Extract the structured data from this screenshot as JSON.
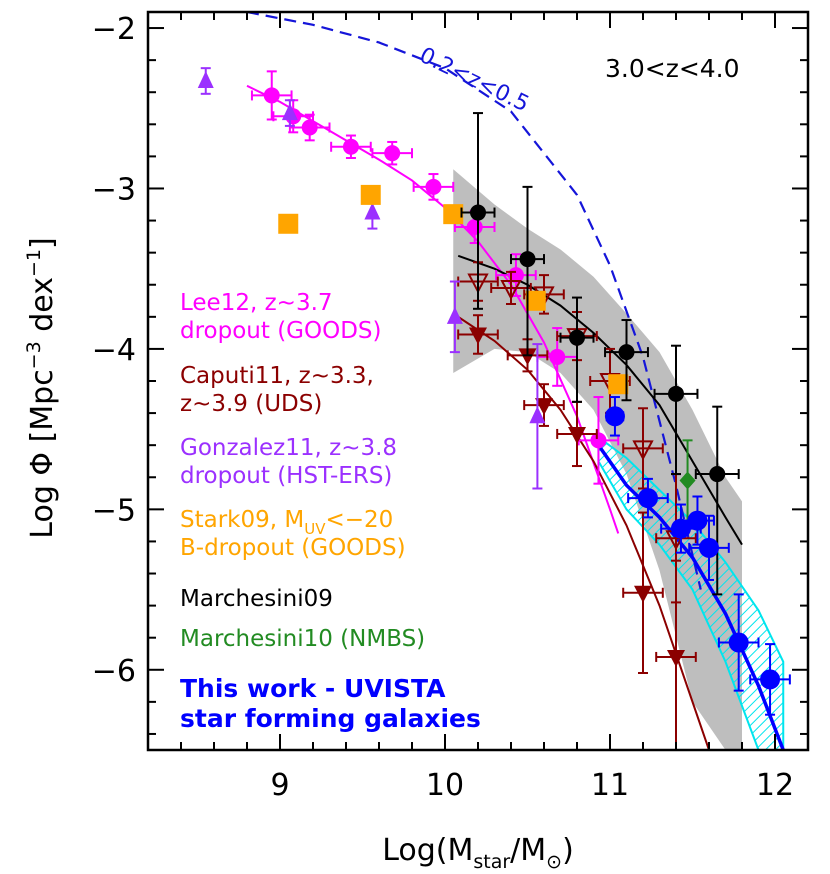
{
  "chart_data": {
    "type": "scatter",
    "xlabel_main": "Log(M",
    "xlabel_sub": "star",
    "xlabel_slash": "/M",
    "xlabel_sun": "⊙",
    "xlabel_close": ")",
    "ylabel_main": "Log Φ [Mpc",
    "ylabel_sup1": "−3",
    "ylabel_mid": " dex",
    "ylabel_sup2": "−1",
    "ylabel_close": "]",
    "xlim": [
      8.2,
      12.2
    ],
    "ylim": [
      -6.5,
      -1.9
    ],
    "xticks": [
      9,
      10,
      11,
      12
    ],
    "xtick_labels": [
      "9",
      "10",
      "11",
      "12"
    ],
    "yticks": [
      -2,
      -3,
      -4,
      -5,
      -6
    ],
    "ytick_labels": [
      "−2",
      "−3",
      "−4",
      "−5",
      "−6"
    ],
    "redshift_label": "3.0<z<4.0",
    "reference_curve_label": "0.2<z<0.5",
    "colors": {
      "Lee12": "#ff00ff",
      "Caputi11": "#8b0000",
      "Gonzalez11": "#9b30ff",
      "Stark09": "#ffa500",
      "Marchesini09": "#000000",
      "Marchesini10": "#228b22",
      "ThisWork": "#0000ff",
      "ThisWorkBand": "#00e5ee",
      "Marchesini09Band": "#bebebe",
      "Reference": "#1515d9"
    },
    "legend": [
      {
        "lines": [
          "Lee12, z~3.7",
          "dropout (GOODS)"
        ],
        "color": "#ff00ff"
      },
      {
        "lines": [
          "Caputi11, z~3.3,",
          "z~3.9 (UDS)"
        ],
        "color": "#8b0000"
      },
      {
        "lines": [
          "Gonzalez11, z~3.8",
          "dropout (HST-ERS)"
        ],
        "color": "#9b30ff"
      },
      {
        "lines": [
          "Stark09, M",
          "B-dropout (GOODS)"
        ],
        "color": "#ffa500",
        "sub": "UV",
        "tail": "<−20"
      },
      {
        "lines": [
          "Marchesini09"
        ],
        "color": "#000000"
      },
      {
        "lines": [
          "Marchesini10 (NMBS)"
        ],
        "color": "#228b22"
      },
      {
        "lines": [
          "This work - UVISTA",
          "star forming galaxies"
        ],
        "color": "#0000ff",
        "bold": true
      }
    ],
    "series": [
      {
        "name": "Lee12, z~3.7 dropout (GOODS)",
        "marker": "circle",
        "points": [
          {
            "x": 8.95,
            "y": -2.42,
            "xerr": 0.12,
            "yerr": 0.15
          },
          {
            "x": 9.08,
            "y": -2.55,
            "xerr": 0.12,
            "yerr": 0.1
          },
          {
            "x": 9.18,
            "y": -2.62,
            "xerr": 0.12,
            "yerr": 0.08
          },
          {
            "x": 9.43,
            "y": -2.74,
            "xerr": 0.12,
            "yerr": 0.07
          },
          {
            "x": 9.68,
            "y": -2.78,
            "xerr": 0.12,
            "yerr": 0.07
          },
          {
            "x": 9.93,
            "y": -2.99,
            "xerr": 0.12,
            "yerr": 0.08
          },
          {
            "x": 10.18,
            "y": -3.24,
            "xerr": 0.12,
            "yerr": 0.1
          },
          {
            "x": 10.43,
            "y": -3.54,
            "xerr": 0.12,
            "yerr": 0.13
          },
          {
            "x": 10.68,
            "y": -4.05,
            "xerr": 0.12,
            "yerr": 0.18
          },
          {
            "x": 10.93,
            "y": -4.57,
            "xerr": 0.12,
            "yerr": 0.27
          }
        ]
      },
      {
        "name": "Caputi11 z~3.3 (filled)",
        "marker": "triangle-down-filled",
        "points": [
          {
            "x": 10.2,
            "y": -3.91,
            "xerr": 0.12,
            "yerr": 0.12
          },
          {
            "x": 10.5,
            "y": -4.04,
            "xerr": 0.12,
            "yerr": 0.1
          },
          {
            "x": 10.6,
            "y": -4.35,
            "xerr": 0.12,
            "yerr": 0.13
          },
          {
            "x": 10.8,
            "y": -4.53,
            "xerr": 0.12,
            "yerr": 0.2
          },
          {
            "x": 11.2,
            "y": -5.52,
            "xerr": 0.12,
            "yerr": 0.5
          },
          {
            "x": 11.4,
            "y": -5.92,
            "xerr": 0.12,
            "yerr": 0.6
          }
        ]
      },
      {
        "name": "Caputi11 z~3.9 (open)",
        "marker": "triangle-down-open",
        "points": [
          {
            "x": 10.2,
            "y": -3.58,
            "xerr": 0.12,
            "yerr": 0.12
          },
          {
            "x": 10.4,
            "y": -3.62,
            "xerr": 0.12,
            "yerr": 0.1
          },
          {
            "x": 10.6,
            "y": -3.66,
            "xerr": 0.12,
            "yerr": 0.12
          },
          {
            "x": 10.8,
            "y": -3.92,
            "xerr": 0.12,
            "yerr": 0.15
          },
          {
            "x": 11.0,
            "y": -4.2,
            "xerr": 0.12,
            "yerr": 0.2
          },
          {
            "x": 11.2,
            "y": -4.62,
            "xerr": 0.12,
            "yerr": 0.25
          },
          {
            "x": 11.4,
            "y": -5.18,
            "xerr": 0.12,
            "yerr": 0.4
          }
        ]
      },
      {
        "name": "Gonzalez11, z~3.8 dropout (HST-ERS)",
        "marker": "triangle-up",
        "points": [
          {
            "x": 8.55,
            "y": -2.33,
            "xerr": 0,
            "yerr": 0.08
          },
          {
            "x": 9.06,
            "y": -2.53,
            "xerr": 0,
            "yerr": 0.08
          },
          {
            "x": 9.56,
            "y": -3.15,
            "xerr": 0,
            "yerr": 0.1
          },
          {
            "x": 10.06,
            "y": -3.8,
            "xerr": 0,
            "yerr": 0.22
          },
          {
            "x": 10.56,
            "y": -4.42,
            "xerr": 0,
            "yerr": 0.45
          }
        ]
      },
      {
        "name": "Stark09, MUV<-20 B-dropout (GOODS)",
        "marker": "square",
        "points": [
          {
            "x": 9.05,
            "y": -3.22
          },
          {
            "x": 9.55,
            "y": -3.04
          },
          {
            "x": 10.05,
            "y": -3.16
          },
          {
            "x": 10.55,
            "y": -3.7
          },
          {
            "x": 11.05,
            "y": -4.22
          }
        ]
      },
      {
        "name": "Marchesini09",
        "marker": "circle",
        "points": [
          {
            "x": 10.2,
            "y": -3.15,
            "xerr": 0.1,
            "yerr_lo": 0.6,
            "yerr_hi": 0.62
          },
          {
            "x": 10.5,
            "y": -3.44,
            "xerr": 0.1,
            "yerr_lo": 0.6,
            "yerr_hi": 0.45
          },
          {
            "x": 10.8,
            "y": -3.93,
            "xerr": 0.1,
            "yerr_lo": 0.4,
            "yerr_hi": 0.25
          },
          {
            "x": 11.1,
            "y": -4.02,
            "xerr": 0.13,
            "yerr_lo": 0.3,
            "yerr_hi": 0.2
          },
          {
            "x": 11.4,
            "y": -4.28,
            "xerr": 0.13,
            "yerr_lo": 0.5,
            "yerr_hi": 0.3
          },
          {
            "x": 11.65,
            "y": -4.78,
            "xerr": 0.13,
            "yerr_lo": 0.75,
            "yerr_hi": 0.42
          }
        ]
      },
      {
        "name": "Marchesini10 (NMBS)",
        "marker": "diamond",
        "points": [
          {
            "x": 11.47,
            "y": -4.82,
            "xerr": 0,
            "yerr": 0.25
          }
        ]
      },
      {
        "name": "This work - UVISTA star forming galaxies",
        "marker": "circle-large",
        "points": [
          {
            "x": 11.03,
            "y": -4.42,
            "xerr": 0.05,
            "yerr": 0.12
          },
          {
            "x": 11.23,
            "y": -4.93,
            "xerr": 0.12,
            "yerr": 0.12
          },
          {
            "x": 11.43,
            "y": -5.12,
            "xerr": 0.12,
            "yerr": 0.15
          },
          {
            "x": 11.53,
            "y": -5.07,
            "xerr": 0.1,
            "yerr": 0.15
          },
          {
            "x": 11.6,
            "y": -5.24,
            "xerr": 0.12,
            "yerr": 0.2
          },
          {
            "x": 11.78,
            "y": -5.83,
            "xerr": 0.12,
            "yerr": 0.3
          },
          {
            "x": 11.97,
            "y": -6.06,
            "xerr": 0.12,
            "yerr": 0.22
          }
        ]
      }
    ],
    "fit_curves": [
      {
        "name": "Lee12 fit",
        "color": "#ff00ff",
        "x": [
          8.8,
          9.0,
          9.2,
          9.4,
          9.6,
          9.8,
          10.0,
          10.2,
          10.4,
          10.6,
          10.8,
          11.0,
          11.05
        ],
        "y": [
          -2.36,
          -2.46,
          -2.58,
          -2.7,
          -2.82,
          -2.95,
          -3.12,
          -3.33,
          -3.6,
          -3.96,
          -4.42,
          -5.0,
          -5.15
        ]
      },
      {
        "name": "Caputi11 fit",
        "color": "#8b0000",
        "x": [
          10.05,
          10.3,
          10.5,
          10.7,
          10.9,
          11.1,
          11.3,
          11.5,
          11.6
        ],
        "y": [
          -3.78,
          -3.95,
          -4.13,
          -4.38,
          -4.7,
          -5.1,
          -5.6,
          -6.2,
          -6.5
        ]
      },
      {
        "name": "Marchesini09 fit",
        "color": "#000000",
        "x": [
          10.08,
          10.3,
          10.5,
          10.7,
          10.9,
          11.1,
          11.3,
          11.5,
          11.7,
          11.8
        ],
        "y": [
          -3.42,
          -3.5,
          -3.6,
          -3.73,
          -3.9,
          -4.1,
          -4.35,
          -4.7,
          -5.05,
          -5.22
        ]
      },
      {
        "name": "This work fit",
        "color": "#0000ff",
        "x": [
          10.93,
          11.1,
          11.3,
          11.5,
          11.7,
          11.9,
          12.05
        ],
        "y": [
          -4.6,
          -4.85,
          -5.05,
          -5.3,
          -5.65,
          -6.1,
          -6.5
        ]
      }
    ],
    "reference_curve": {
      "color": "#1515d9",
      "x": [
        8.8,
        9.2,
        9.6,
        10.0,
        10.4,
        10.8,
        11.0,
        11.2,
        11.4,
        11.55
      ],
      "y": [
        -1.9,
        -1.98,
        -2.09,
        -2.25,
        -2.52,
        -3.04,
        -3.48,
        -4.05,
        -4.85,
        -5.5
      ]
    },
    "shaded_bands": [
      {
        "name": "Marchesini09 uncertainty",
        "color": "#bebebe",
        "x": [
          10.05,
          10.3,
          10.5,
          10.7,
          10.9,
          11.1,
          11.3,
          11.5,
          11.7,
          11.8
        ],
        "upper": [
          -2.88,
          -3.1,
          -3.25,
          -3.38,
          -3.55,
          -3.78,
          -4.02,
          -4.38,
          -4.8,
          -4.95
        ],
        "lower": [
          -4.15,
          -4.0,
          -4.02,
          -4.15,
          -4.38,
          -4.78,
          -5.38,
          -6.2,
          -6.5,
          -6.5
        ]
      },
      {
        "name": "This work uncertainty",
        "color": "#00e5ee",
        "hatched": true,
        "x": [
          10.93,
          11.1,
          11.3,
          11.5,
          11.7,
          11.9,
          12.05
        ],
        "upper": [
          -4.55,
          -4.68,
          -4.88,
          -5.08,
          -5.33,
          -5.63,
          -5.95
        ],
        "lower": [
          -4.7,
          -5.0,
          -5.22,
          -5.5,
          -5.95,
          -6.5,
          -6.5
        ]
      }
    ]
  }
}
